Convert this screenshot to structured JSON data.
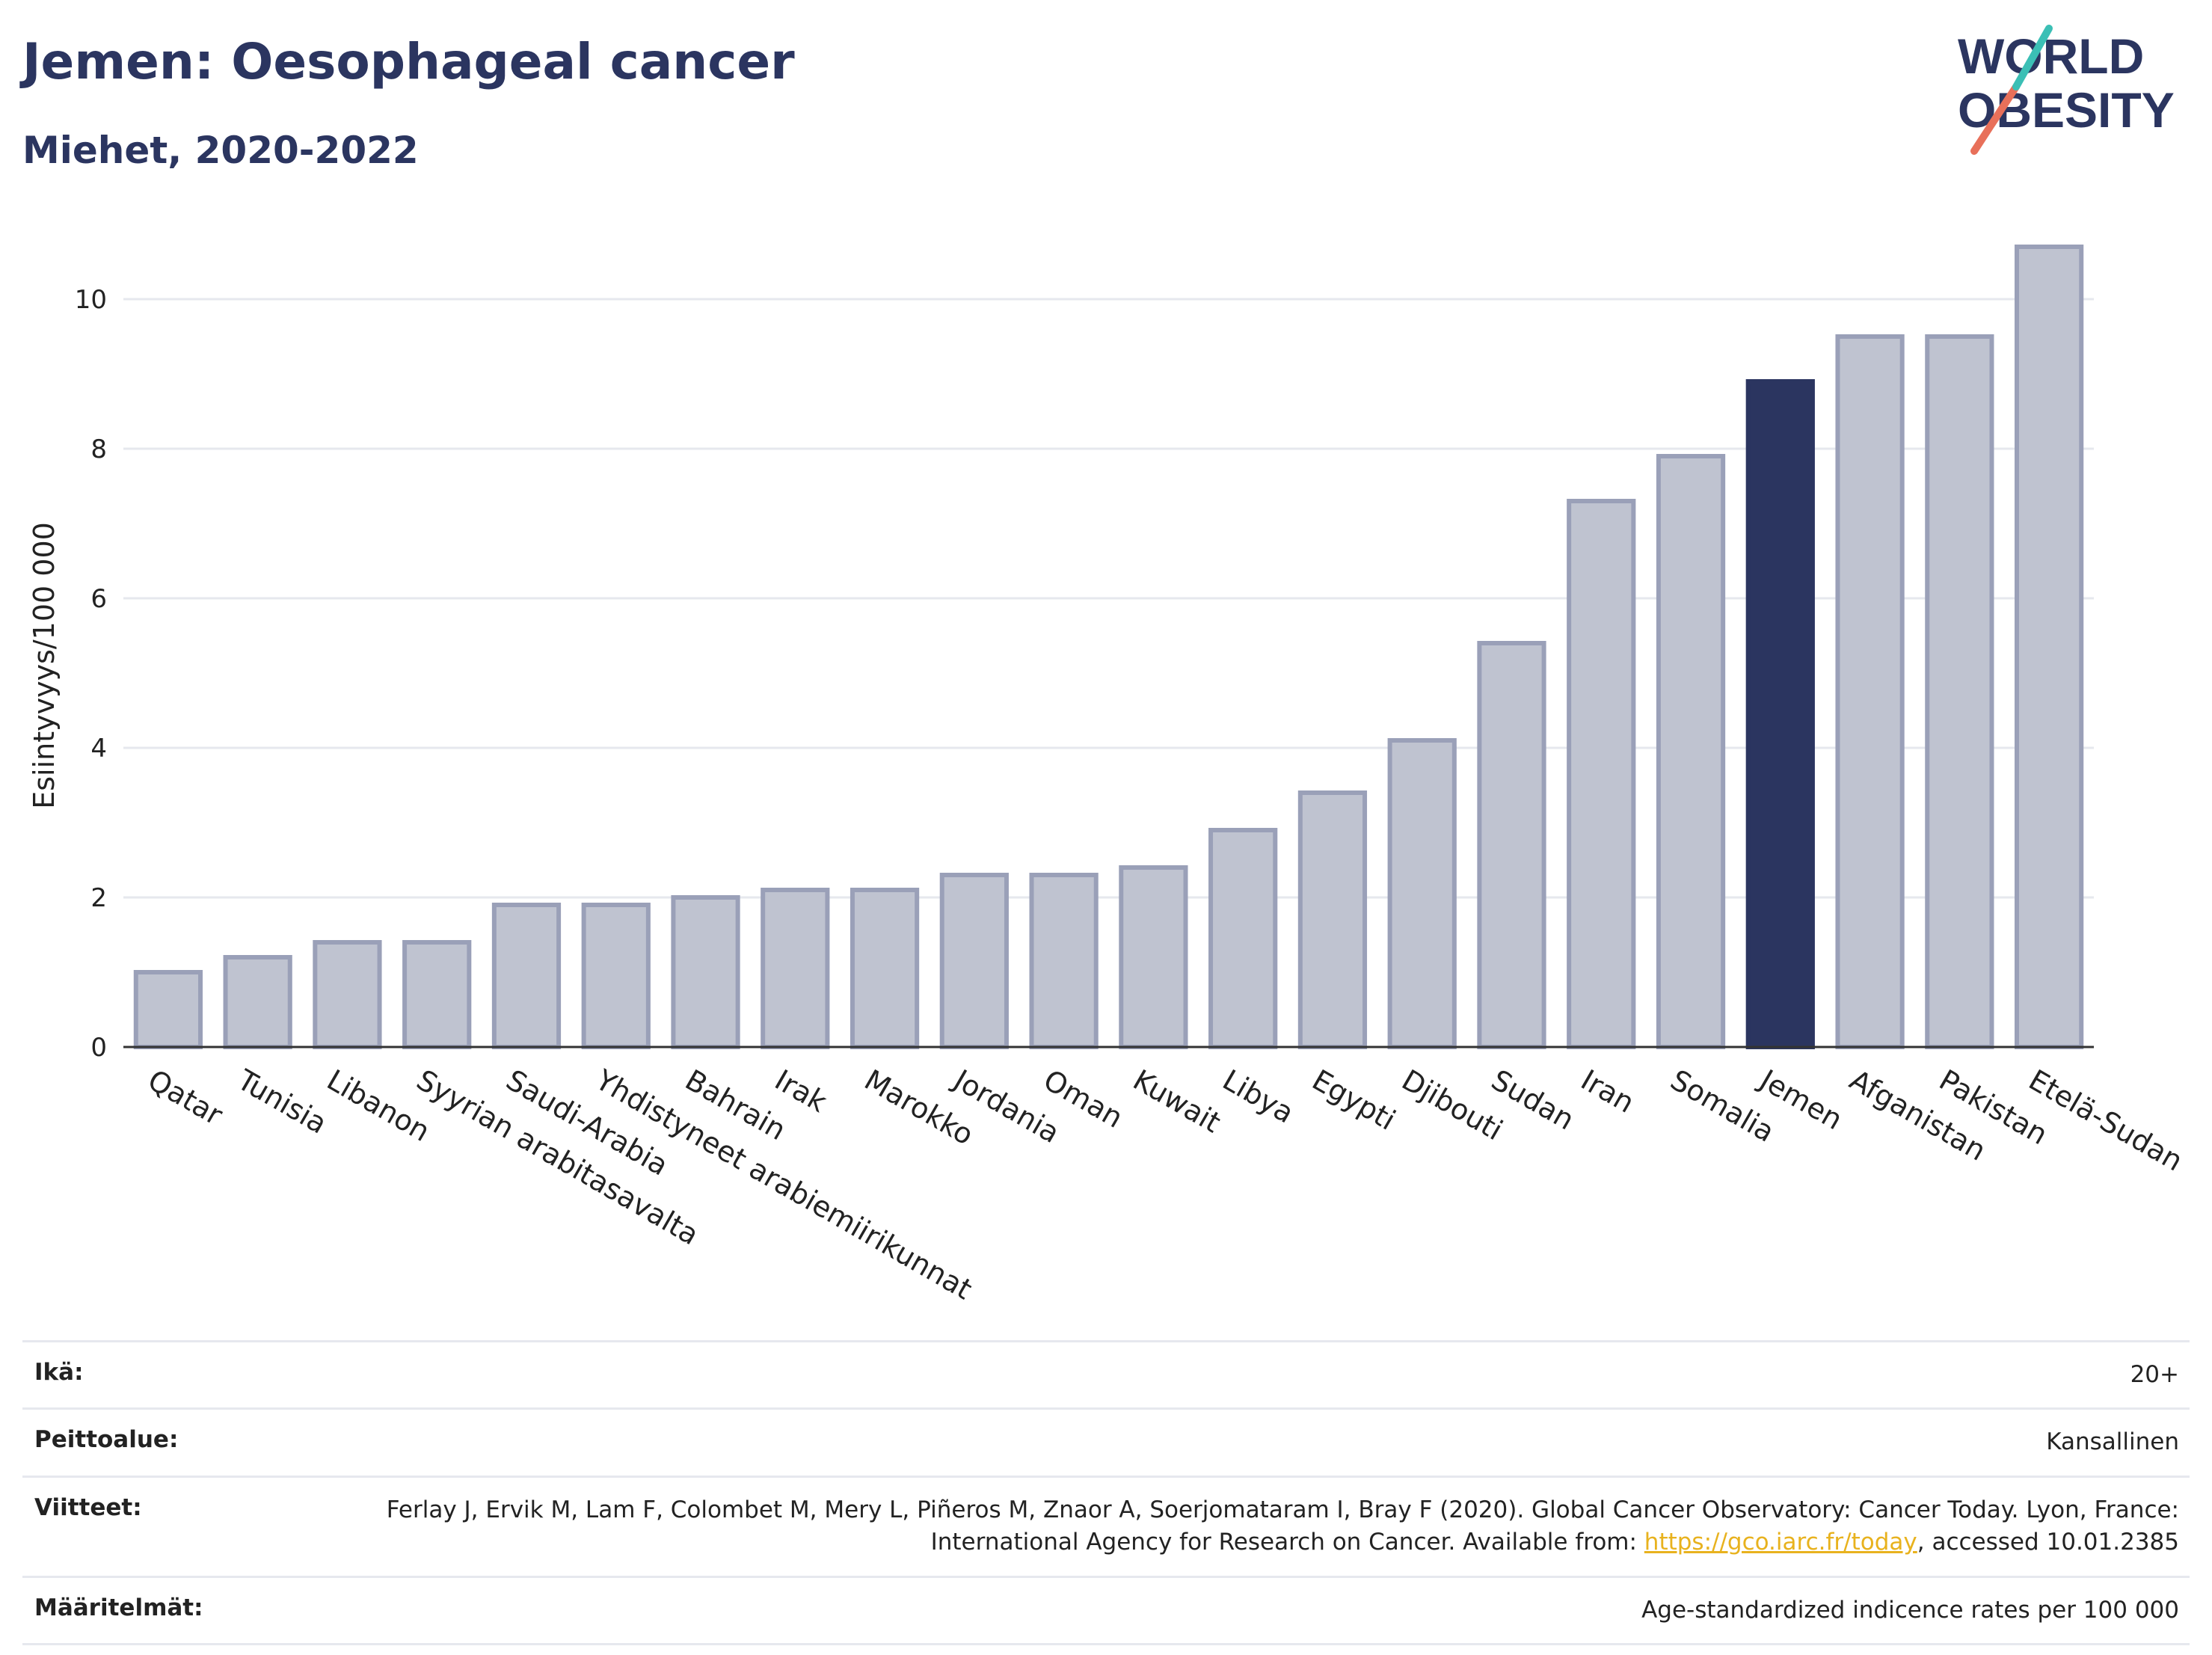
{
  "header": {
    "title": "Jemen: Oesophageal cancer",
    "subtitle": "Miehet, 2020-2022",
    "logo_line1": "WORLD",
    "logo_line2": "OBESITY"
  },
  "colors": {
    "title": "#2b3560",
    "bar_default": "#bfc3d0",
    "bar_default_stroke": "#9aa0b8",
    "bar_highlight": "#2b3560",
    "logo_teal": "#3bbfb5",
    "logo_coral": "#e8705a",
    "link": "#e8b21e"
  },
  "chart_data": {
    "type": "bar",
    "title": "",
    "ylabel": "Esiintyvyys/100 000",
    "xlabel": "",
    "ylim": [
      0,
      11
    ],
    "yticks": [
      0,
      2,
      4,
      6,
      8,
      10
    ],
    "grid": true,
    "highlight": "Jemen",
    "categories": [
      "Qatar",
      "Tunisia",
      "Libanon",
      "Syyrian arabitasavalta",
      "Saudi-Arabia",
      "Yhdistyneet arabiemiirikunnat",
      "Bahrain",
      "Irak",
      "Marokko",
      "Jordania",
      "Oman",
      "Kuwait",
      "Libya",
      "Egypti",
      "Djibouti",
      "Sudan",
      "Iran",
      "Somalia",
      "Jemen",
      "Afganistan",
      "Pakistan",
      "Etelä-Sudan"
    ],
    "values": [
      1.0,
      1.2,
      1.4,
      1.4,
      1.9,
      1.9,
      2.0,
      2.1,
      2.1,
      2.3,
      2.3,
      2.4,
      2.9,
      3.4,
      4.1,
      5.4,
      7.3,
      7.9,
      8.9,
      9.5,
      9.5,
      10.7
    ]
  },
  "meta": [
    {
      "label": "Ikä:",
      "value": "20+"
    },
    {
      "label": "Peittoalue:",
      "value": "Kansallinen"
    },
    {
      "label": "Viitteet:",
      "value_before": "Ferlay J, Ervik M, Lam F, Colombet M, Mery L, Piñeros M, Znaor A, Soerjomataram I, Bray F (2020). Global Cancer Observatory: Cancer Today. Lyon, France: International Agency for Research on Cancer. Available from: ",
      "link": "https://gco.iarc.fr/today",
      "value_after": ", accessed 10.01.2385"
    },
    {
      "label": "Määritelmät:",
      "value": "Age-standardized indicence rates per 100 000"
    }
  ]
}
